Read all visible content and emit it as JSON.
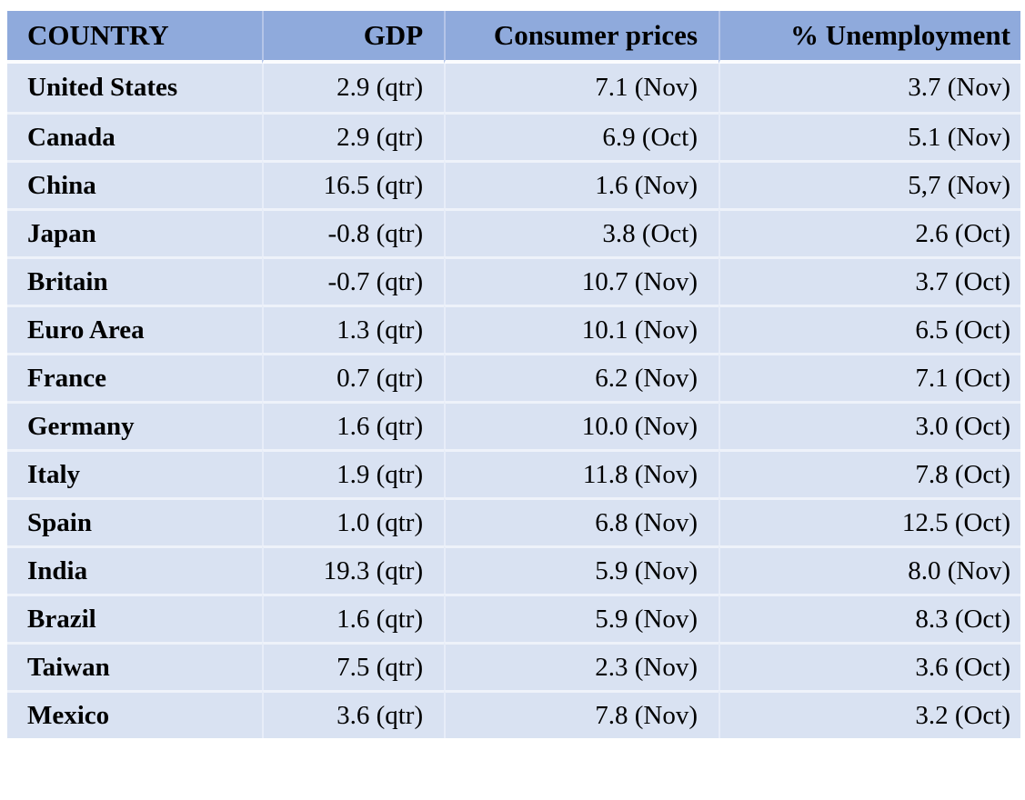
{
  "table": {
    "columns": [
      {
        "label": "COUNTRY",
        "align": "left"
      },
      {
        "label": "GDP",
        "align": "right"
      },
      {
        "label": "Consumer prices",
        "align": "right"
      },
      {
        "label": "% Unemployment",
        "align": "right"
      }
    ],
    "rows": [
      [
        "United States",
        "2.9 (qtr)",
        "7.1 (Nov)",
        "3.7 (Nov)"
      ],
      [
        "Canada",
        "2.9 (qtr)",
        "6.9 (Oct)",
        "5.1 (Nov)"
      ],
      [
        "China",
        "16.5 (qtr)",
        "1.6 (Nov)",
        "5,7 (Nov)"
      ],
      [
        "Japan",
        "-0.8 (qtr)",
        "3.8 (Oct)",
        "2.6 (Oct)"
      ],
      [
        "Britain",
        "-0.7 (qtr)",
        "10.7 (Nov)",
        "3.7 (Oct)"
      ],
      [
        "Euro Area",
        "1.3 (qtr)",
        "10.1 (Nov)",
        "6.5 (Oct)"
      ],
      [
        "France",
        "0.7 (qtr)",
        "6.2 (Nov)",
        "7.1 (Oct)"
      ],
      [
        "Germany",
        "1.6 (qtr)",
        "10.0 (Nov)",
        "3.0 (Oct)"
      ],
      [
        "Italy",
        "1.9 (qtr)",
        "11.8 (Nov)",
        "7.8 (Oct)"
      ],
      [
        "Spain",
        "1.0 (qtr)",
        "6.8 (Nov)",
        "12.5 (Oct)"
      ],
      [
        "India",
        "19.3 (qtr)",
        "5.9 (Nov)",
        "8.0 (Nov)"
      ],
      [
        "Brazil",
        "1.6 (qtr)",
        "5.9 (Nov)",
        "8.3 (Oct)"
      ],
      [
        "Taiwan",
        "7.5 (qtr)",
        "2.3 (Nov)",
        "3.6 (Oct)"
      ],
      [
        "Mexico",
        "3.6 (qtr)",
        "7.8 (Nov)",
        "3.2 (Oct)"
      ]
    ]
  },
  "chart_data": {
    "type": "table",
    "title": "",
    "columns": [
      "COUNTRY",
      "GDP",
      "Consumer prices",
      "% Unemployment"
    ],
    "categories": [
      "United States",
      "Canada",
      "China",
      "Japan",
      "Britain",
      "Euro Area",
      "France",
      "Germany",
      "Italy",
      "Spain",
      "India",
      "Brazil",
      "Taiwan",
      "Mexico"
    ],
    "series": [
      {
        "name": "GDP",
        "unit_note": "qtr",
        "values": [
          2.9,
          2.9,
          16.5,
          -0.8,
          -0.7,
          1.3,
          0.7,
          1.6,
          1.9,
          1.0,
          19.3,
          1.6,
          7.5,
          3.6
        ]
      },
      {
        "name": "Consumer prices",
        "values": [
          7.1,
          6.9,
          1.6,
          3.8,
          10.7,
          10.1,
          6.2,
          10.0,
          11.8,
          6.8,
          5.9,
          5.9,
          2.3,
          7.8
        ],
        "months": [
          "Nov",
          "Oct",
          "Nov",
          "Oct",
          "Nov",
          "Nov",
          "Nov",
          "Nov",
          "Nov",
          "Nov",
          "Nov",
          "Nov",
          "Nov",
          "Nov"
        ]
      },
      {
        "name": "% Unemployment",
        "values": [
          3.7,
          5.1,
          5.7,
          2.6,
          3.7,
          6.5,
          7.1,
          3.0,
          7.8,
          12.5,
          8.0,
          8.3,
          3.6,
          3.2
        ],
        "months": [
          "Nov",
          "Nov",
          "Nov",
          "Oct",
          "Oct",
          "Oct",
          "Oct",
          "Oct",
          "Oct",
          "Oct",
          "Nov",
          "Oct",
          "Oct",
          "Oct"
        ]
      }
    ]
  },
  "colors": {
    "header_bg": "#8FAADC",
    "row_bg": "#D9E2F2",
    "text": "#000000",
    "page_bg": "#FFFFFF"
  }
}
